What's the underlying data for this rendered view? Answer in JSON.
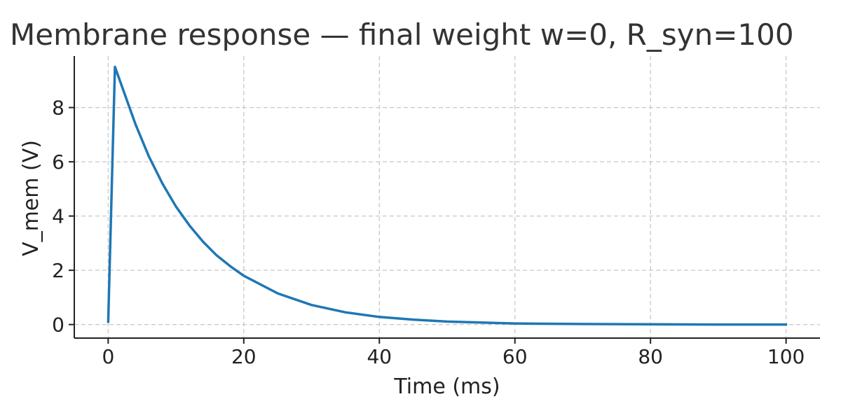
{
  "chart_data": {
    "type": "line",
    "title": "Membrane response — final weight w=0, R_syn=100",
    "xlabel": "Time (ms)",
    "ylabel": "V_mem (V)",
    "xlim": [
      -5,
      105
    ],
    "ylim": [
      -0.5,
      9.9
    ],
    "x_ticks": [
      0,
      20,
      40,
      60,
      80,
      100
    ],
    "x_tick_labels": [
      "0",
      "20",
      "40",
      "60",
      "80",
      "100"
    ],
    "y_ticks": [
      0,
      2,
      4,
      6,
      8
    ],
    "y_tick_labels": [
      "0",
      "2",
      "4",
      "6",
      "8"
    ],
    "grid": true,
    "colors": {
      "series": "#1f77b4"
    },
    "series": [
      {
        "x": [
          0,
          1,
          2,
          4,
          6,
          8,
          10,
          12,
          14,
          16,
          18,
          20,
          25,
          30,
          35,
          40,
          45,
          50,
          60,
          70,
          80,
          90,
          100
        ],
        "y": [
          0.1,
          9.5,
          8.8,
          7.4,
          6.2,
          5.2,
          4.35,
          3.65,
          3.05,
          2.55,
          2.15,
          1.8,
          1.15,
          0.72,
          0.45,
          0.28,
          0.18,
          0.11,
          0.04,
          0.02,
          0.01,
          0.0,
          0.0
        ]
      }
    ]
  }
}
